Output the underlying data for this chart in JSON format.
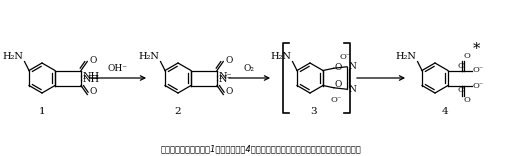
{
  "caption": "ルミノールの構造式（1）と発光体（4：右肩の＊印は励起状態を表す）を生成する反応",
  "background_color": "#ffffff",
  "text_color": "#000000",
  "figsize": [
    5.23,
    1.56
  ],
  "dpi": 100,
  "arrow1_label": "OH⁻",
  "arrow2_label": "O₂",
  "c1_label": "1",
  "c2_label": "2",
  "c3_label": "3",
  "c4_label": "4"
}
